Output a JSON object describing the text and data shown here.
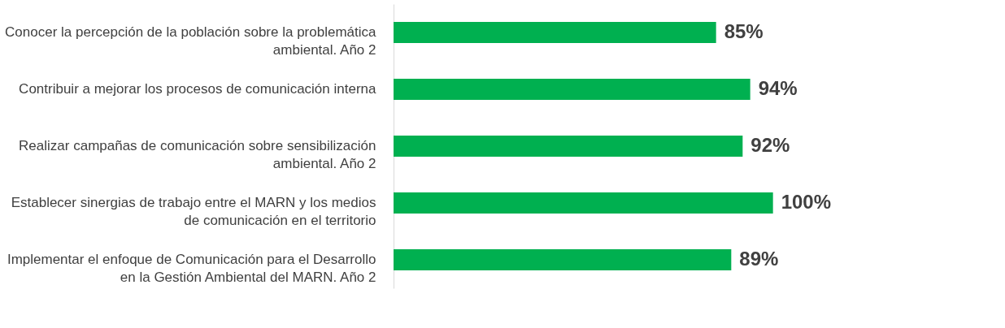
{
  "chart_data": {
    "type": "bar",
    "orientation": "horizontal",
    "categories": [
      "Conocer la percepción de la población sobre la problemática ambiental. Año 2",
      "Contribuir a mejorar los procesos de comunicación interna",
      "Realizar campañas de comunicación sobre sensibilización ambiental. Año 2",
      "Establecer sinergias de trabajo entre el MARN y los medios de comunicación en el territorio",
      "Implementar el enfoque de Comunicación para el Desarrollo en la Gestión Ambiental del MARN. Año 2"
    ],
    "values": [
      85,
      94,
      92,
      100,
      89
    ],
    "value_labels": [
      "85%",
      "94%",
      "92%",
      "100%",
      "89%"
    ],
    "color": "#00b050",
    "grid": false
  }
}
